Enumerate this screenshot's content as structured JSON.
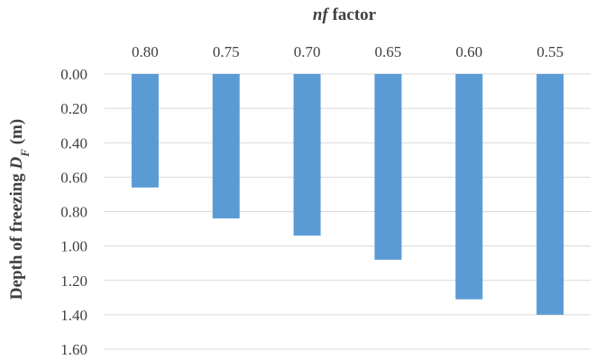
{
  "chart_data": {
    "type": "bar",
    "orientation": "vertical-inverted",
    "x_axis_position": "top",
    "title": "",
    "xlabel_parts": [
      {
        "text": "nf",
        "style": "bold-italic"
      },
      {
        "text": " factor",
        "style": "bold"
      }
    ],
    "ylabel_parts": [
      {
        "text": "Depth of freezing ",
        "style": "bold"
      },
      {
        "text": "D",
        "style": "bold-italic"
      },
      {
        "text": "F",
        "style": "bold-italic-subscript"
      },
      {
        "text": " (m)",
        "style": "bold"
      }
    ],
    "categories": [
      "0.80",
      "0.75",
      "0.70",
      "0.65",
      "0.60",
      "0.55"
    ],
    "values": [
      0.66,
      0.84,
      0.94,
      1.08,
      1.31,
      1.4
    ],
    "ylim": [
      0,
      1.6
    ],
    "y_ticks": [
      "0.00",
      "0.20",
      "0.40",
      "0.60",
      "0.80",
      "1.00",
      "1.20",
      "1.40",
      "1.60"
    ],
    "grid": true,
    "legend": "none",
    "bar_color": "#5b9bd5"
  }
}
